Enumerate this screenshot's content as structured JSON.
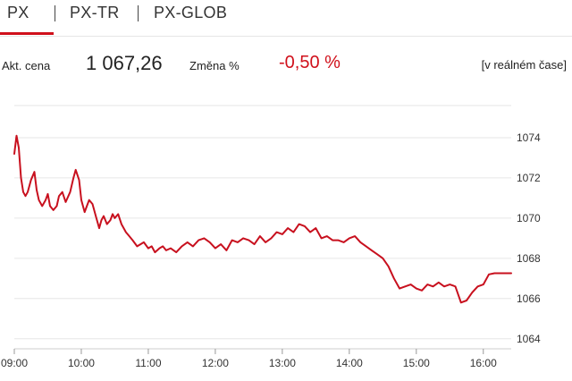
{
  "tabs": [
    {
      "label": "PX",
      "active": true
    },
    {
      "label": "PX-TR",
      "active": false
    },
    {
      "label": "PX-GLOB",
      "active": false
    }
  ],
  "quote": {
    "price_label": "Akt. cena",
    "price": "1 067,26",
    "change_label": "Změna %",
    "change": "-0,50 %",
    "realtime": "[v reálném čase]"
  },
  "colors": {
    "accent": "#d0101b",
    "line": "#c8101e",
    "grid": "#e6e6e6"
  },
  "chart_data": {
    "type": "line",
    "title": "",
    "xlabel": "",
    "ylabel": "",
    "x_ticks": [
      "09:00",
      "10:00",
      "11:00",
      "12:00",
      "13:00",
      "14:00",
      "15:00",
      "16:00"
    ],
    "y_ticks": [
      1064,
      1066,
      1068,
      1070,
      1072,
      1074
    ],
    "xlim": [
      "09:00",
      "16:25"
    ],
    "ylim": [
      1063.5,
      1075.6
    ],
    "grid": "horizontal",
    "series": [
      {
        "x": [
          "09:00",
          "09:02",
          "09:04",
          "09:06",
          "09:08",
          "09:10",
          "09:12",
          "09:15",
          "09:18",
          "09:20",
          "09:22",
          "09:25",
          "09:28",
          "09:30",
          "09:32",
          "09:35",
          "09:38",
          "09:40",
          "09:43",
          "09:46",
          "09:50",
          "09:53",
          "09:55",
          "09:58",
          "10:00",
          "10:03",
          "10:05",
          "10:07",
          "10:10",
          "10:13",
          "10:16",
          "10:18",
          "10:20",
          "10:23",
          "10:26",
          "10:28",
          "10:30",
          "10:33",
          "10:36",
          "10:40",
          "10:43",
          "10:46",
          "10:50",
          "10:53",
          "10:56",
          "11:00",
          "11:03",
          "11:06",
          "11:10",
          "11:13",
          "11:16",
          "11:20",
          "11:25",
          "11:30",
          "11:35",
          "11:40",
          "11:45",
          "11:50",
          "11:55",
          "12:00",
          "12:05",
          "12:10",
          "12:15",
          "12:20",
          "12:25",
          "12:30",
          "12:35",
          "12:40",
          "12:45",
          "12:50",
          "12:55",
          "13:00",
          "13:05",
          "13:10",
          "13:15",
          "13:20",
          "13:25",
          "13:30",
          "13:35",
          "13:40",
          "13:45",
          "13:50",
          "13:55",
          "14:00",
          "14:05",
          "14:10",
          "14:15",
          "14:20",
          "14:25",
          "14:30",
          "14:35",
          "14:40",
          "14:45",
          "14:50",
          "14:55",
          "15:00",
          "15:05",
          "15:10",
          "15:15",
          "15:20",
          "15:25",
          "15:30",
          "15:35",
          "15:40",
          "15:45",
          "15:50",
          "15:55",
          "16:00",
          "16:05",
          "16:10",
          "16:15",
          "16:20",
          "16:25"
        ],
        "y": [
          1073.2,
          1074.1,
          1073.5,
          1072.0,
          1071.3,
          1071.1,
          1071.3,
          1071.9,
          1072.3,
          1071.4,
          1070.9,
          1070.6,
          1070.9,
          1071.2,
          1070.6,
          1070.4,
          1070.6,
          1071.1,
          1071.3,
          1070.8,
          1071.3,
          1072.0,
          1072.4,
          1071.9,
          1070.9,
          1070.3,
          1070.6,
          1070.9,
          1070.7,
          1070.1,
          1069.5,
          1069.9,
          1070.1,
          1069.7,
          1069.9,
          1070.2,
          1070.0,
          1070.2,
          1069.7,
          1069.3,
          1069.1,
          1068.9,
          1068.6,
          1068.7,
          1068.8,
          1068.5,
          1068.6,
          1068.3,
          1068.5,
          1068.6,
          1068.4,
          1068.5,
          1068.3,
          1068.6,
          1068.8,
          1068.6,
          1068.9,
          1069.0,
          1068.8,
          1068.5,
          1068.7,
          1068.4,
          1068.9,
          1068.8,
          1069.0,
          1068.9,
          1068.7,
          1069.1,
          1068.8,
          1069.0,
          1069.3,
          1069.2,
          1069.5,
          1069.3,
          1069.7,
          1069.6,
          1069.3,
          1069.5,
          1069.0,
          1069.1,
          1068.9,
          1068.9,
          1068.8,
          1069.0,
          1069.1,
          1068.8,
          1068.6,
          1068.4,
          1068.2,
          1068.0,
          1067.6,
          1067.0,
          1066.5,
          1066.6,
          1066.7,
          1066.5,
          1066.4,
          1066.7,
          1066.6,
          1066.8,
          1066.6,
          1066.7,
          1066.6,
          1065.8,
          1065.9,
          1066.3,
          1066.6,
          1066.7,
          1067.2,
          1067.26,
          1067.26,
          1067.26,
          1067.26
        ]
      }
    ]
  }
}
